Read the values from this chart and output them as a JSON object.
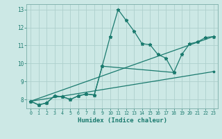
{
  "title": "",
  "xlabel": "Humidex (Indice chaleur)",
  "bg_color": "#cce8e5",
  "grid_color": "#aed0cc",
  "line_color": "#1a7a6e",
  "xlim": [
    -0.5,
    23.5
  ],
  "ylim": [
    7.5,
    13.3
  ],
  "xticks": [
    0,
    1,
    2,
    3,
    4,
    5,
    6,
    7,
    8,
    9,
    10,
    11,
    12,
    13,
    14,
    15,
    16,
    17,
    18,
    19,
    20,
    21,
    22,
    23
  ],
  "yticks": [
    8,
    9,
    10,
    11,
    12,
    13
  ],
  "line1_x": [
    0,
    1,
    2,
    3,
    4,
    5,
    6,
    7,
    8,
    9,
    10,
    11,
    12,
    13,
    14,
    15,
    16,
    17,
    18
  ],
  "line1_y": [
    7.9,
    7.7,
    7.8,
    8.2,
    8.15,
    8.0,
    8.2,
    8.3,
    8.25,
    9.85,
    11.5,
    13.0,
    12.4,
    11.8,
    11.1,
    11.05,
    10.5,
    10.3,
    9.5
  ],
  "line2_x": [
    0,
    1,
    2,
    3,
    4,
    5,
    6,
    7,
    8,
    9,
    18,
    19,
    20,
    21,
    22,
    23
  ],
  "line2_y": [
    7.9,
    7.7,
    7.8,
    8.2,
    8.15,
    8.0,
    8.2,
    8.3,
    8.25,
    9.85,
    9.5,
    10.5,
    11.1,
    11.2,
    11.45,
    11.5
  ],
  "line3_x": [
    0,
    23
  ],
  "line3_y": [
    7.9,
    11.5
  ],
  "line4_x": [
    0,
    23
  ],
  "line4_y": [
    7.9,
    9.55
  ]
}
